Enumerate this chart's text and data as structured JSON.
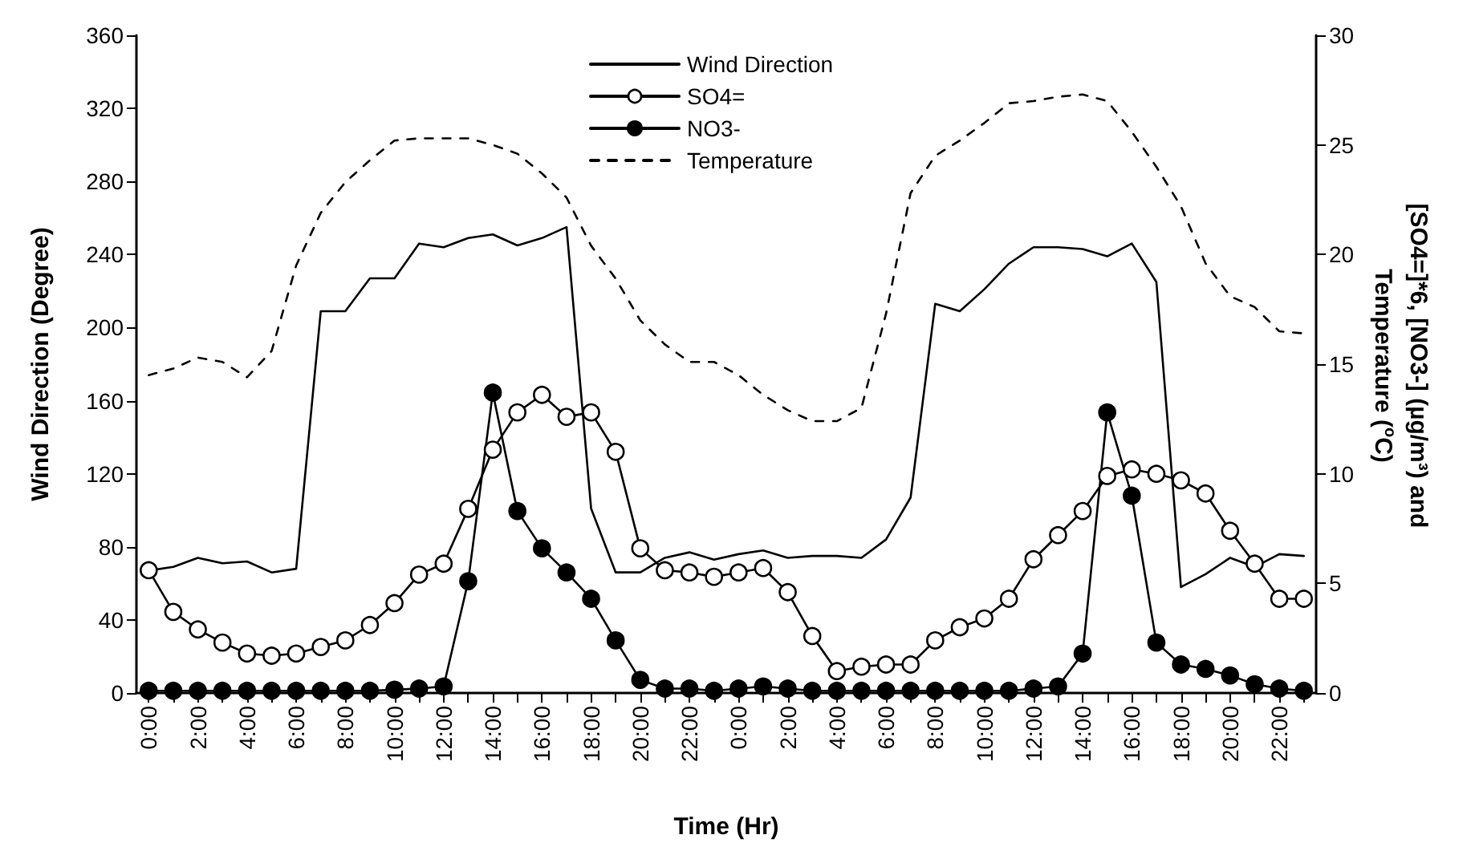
{
  "chart_data": {
    "type": "line",
    "xlabel": "Time (Hr)",
    "ylabel": "Wind Direction (Degree)",
    "y2label": "[SO4=]*6, [NO3-] (µg/m³) and Temperature ($^{o}$C)",
    "categories": [
      "0:00",
      null,
      "2:00",
      null,
      "4:00",
      null,
      "6:00",
      null,
      "8:00",
      null,
      "10:00",
      null,
      "12:00",
      null,
      "14:00",
      null,
      "16:00",
      null,
      "18:00",
      null,
      "20:00",
      null,
      "22:00",
      null,
      "0:00",
      null,
      "2:00",
      null,
      "4:00",
      null,
      "6:00",
      null,
      "8:00",
      null,
      "10:00",
      null,
      "12:00",
      null,
      "14:00",
      null,
      "16:00",
      null,
      "18:00",
      null,
      "20:00",
      null,
      "22:00",
      null
    ],
    "ylim": [
      0,
      360
    ],
    "yticks": [
      0,
      40,
      80,
      120,
      160,
      200,
      240,
      280,
      320,
      360
    ],
    "y2lim": [
      0,
      30
    ],
    "y2ticks": [
      0,
      5,
      10,
      15,
      20,
      25,
      30
    ],
    "grid": false,
    "legend": "top",
    "series": [
      {
        "name": "Wind Direction",
        "color": "#000000",
        "marker": "none",
        "line_style": "solid",
        "values": [
          67,
          69,
          74,
          71,
          72,
          66,
          68,
          209,
          209,
          227,
          227,
          246,
          244,
          249,
          251,
          245,
          249,
          255,
          101,
          66,
          66,
          74,
          77,
          73,
          76,
          78,
          74,
          75,
          75,
          74,
          84,
          107,
          213,
          209,
          221,
          235,
          244,
          244,
          243,
          239,
          246,
          225,
          58,
          65,
          74,
          69,
          76,
          75
        ]
      },
      {
        "name": "SO4=",
        "color": "#000000",
        "marker": "circle",
        "colors": [
          "#ffffff",
          "#ffffff",
          "#ffffff",
          "#ffffff",
          "#ffffff",
          "#ffffff",
          "#ffffff",
          "#ffffff",
          "#ffffff",
          "#ffffff",
          "#ffffff",
          "#ffffff",
          "#ffffff",
          "#ffffff",
          "#ffffff",
          "#ffffff",
          "#ffffff",
          "#ffffff",
          "#ffffff",
          "#ffffff",
          "#ffffff",
          "#ffffff",
          "#ffffff",
          "#ffffff",
          "#ffffff",
          "#ffffff",
          "#ffffff",
          "#ffffff",
          "#ffffff",
          "#ffffff",
          "#ffffff",
          "#ffffff",
          "#ffffff",
          "#ffffff",
          "#ffffff",
          "#ffffff",
          "#ffffff",
          "#ffffff",
          "#ffffff",
          "#ffffff",
          "#ffffff",
          "#ffffff",
          "#ffffff",
          "#ffffff",
          "#ffffff",
          "#ffffff",
          "#ffffff",
          "#ffffff"
        ],
        "line_style": "solid",
        "axis": "y2",
        "values": [
          5.6,
          3.7,
          2.9,
          2.3,
          1.8,
          1.7,
          1.8,
          2.1,
          2.4,
          3.1,
          4.1,
          5.4,
          5.9,
          8.4,
          11.1,
          12.8,
          13.6,
          12.6,
          12.8,
          11.0,
          6.6,
          5.6,
          5.5,
          5.3,
          5.5,
          5.7,
          4.6,
          2.6,
          1.0,
          1.2,
          1.3,
          1.3,
          2.4,
          3.0,
          3.4,
          4.3,
          6.1,
          7.2,
          8.3,
          9.9,
          10.2,
          10.0,
          9.7,
          9.1,
          7.4,
          5.9,
          4.3,
          4.3
        ]
      },
      {
        "name": "NO3-",
        "color": "#000000",
        "marker": "circle",
        "line_style": "solid",
        "axis": "y2",
        "values": [
          0.1,
          0.1,
          0.1,
          0.1,
          0.1,
          0.1,
          0.1,
          0.1,
          0.1,
          0.1,
          0.15,
          0.2,
          0.3,
          5.1,
          13.7,
          8.3,
          6.6,
          5.5,
          4.3,
          2.4,
          0.6,
          0.2,
          0.2,
          0.1,
          0.2,
          0.3,
          0.2,
          0.1,
          0.1,
          0.1,
          0.1,
          0.1,
          0.1,
          0.1,
          0.1,
          0.1,
          0.2,
          0.3,
          1.8,
          12.8,
          9.0,
          2.3,
          1.3,
          1.1,
          0.8,
          0.4,
          0.2,
          0.1
        ]
      },
      {
        "name": "Temperature",
        "color": "#000000",
        "marker": "none",
        "line_style": "dashed",
        "axis": "y2",
        "values": [
          14.5,
          14.8,
          15.3,
          15.1,
          14.4,
          15.6,
          19.5,
          21.9,
          23.3,
          24.3,
          25.2,
          25.3,
          25.3,
          25.3,
          25.0,
          24.6,
          23.7,
          22.6,
          20.4,
          18.9,
          17.0,
          15.9,
          15.1,
          15.1,
          14.5,
          13.6,
          12.9,
          12.4,
          12.4,
          13.0,
          17.3,
          22.8,
          24.5,
          25.2,
          26.0,
          26.9,
          27.0,
          27.2,
          27.3,
          27.0,
          25.6,
          24.0,
          22.2,
          19.6,
          18.1,
          17.6,
          16.5,
          16.4
        ]
      }
    ]
  }
}
